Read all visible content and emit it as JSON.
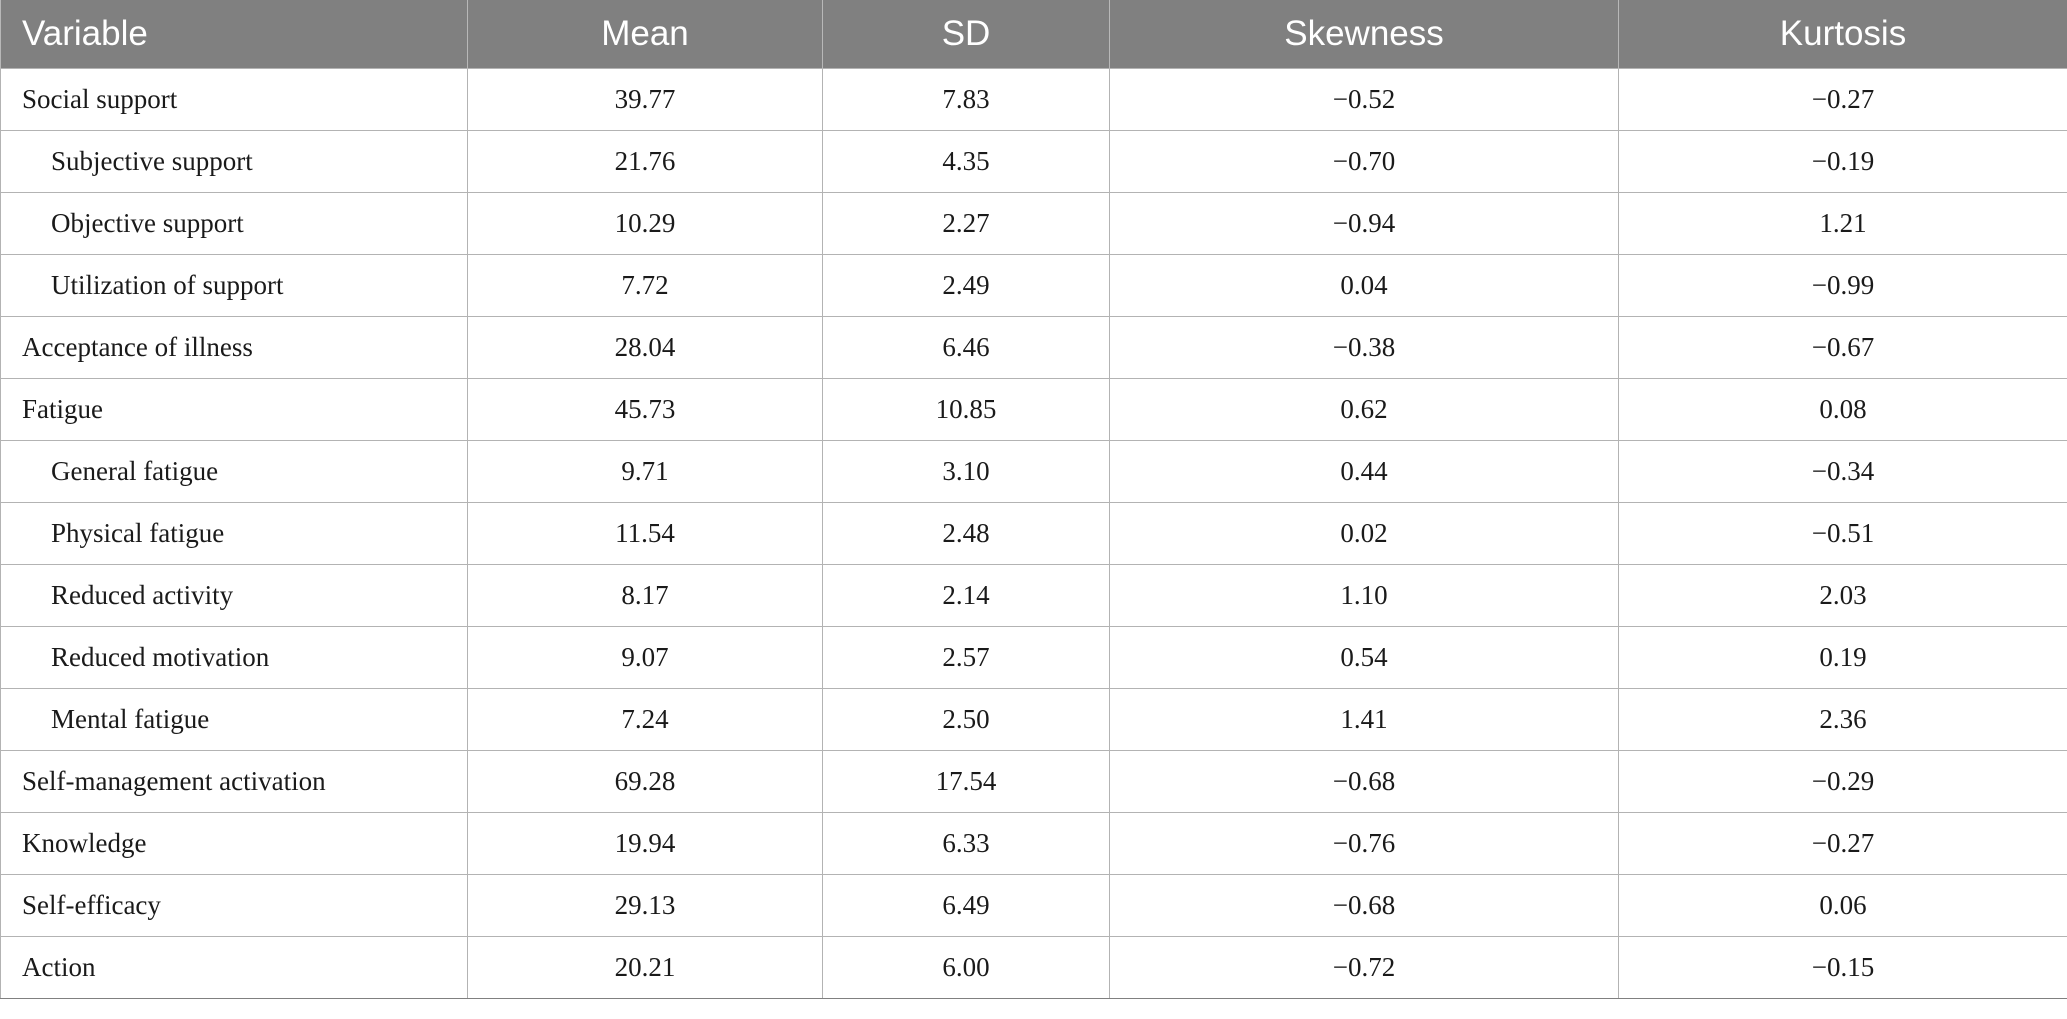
{
  "table": {
    "headers": [
      "Variable",
      "Mean",
      "SD",
      "Skewness",
      "Kurtosis"
    ],
    "rows": [
      {
        "variable": "Social support",
        "level": 0,
        "mean": "39.77",
        "sd": "7.83",
        "skewness": "−0.52",
        "kurtosis": "−0.27"
      },
      {
        "variable": "Subjective support",
        "level": 1,
        "mean": "21.76",
        "sd": "4.35",
        "skewness": "−0.70",
        "kurtosis": "−0.19"
      },
      {
        "variable": "Objective support",
        "level": 1,
        "mean": "10.29",
        "sd": "2.27",
        "skewness": "−0.94",
        "kurtosis": "1.21"
      },
      {
        "variable": "Utilization of support",
        "level": 1,
        "mean": "7.72",
        "sd": "2.49",
        "skewness": "0.04",
        "kurtosis": "−0.99"
      },
      {
        "variable": "Acceptance of illness",
        "level": 0,
        "mean": "28.04",
        "sd": "6.46",
        "skewness": "−0.38",
        "kurtosis": "−0.67"
      },
      {
        "variable": "Fatigue",
        "level": 0,
        "mean": "45.73",
        "sd": "10.85",
        "skewness": "0.62",
        "kurtosis": "0.08"
      },
      {
        "variable": "General fatigue",
        "level": 1,
        "mean": "9.71",
        "sd": "3.10",
        "skewness": "0.44",
        "kurtosis": "−0.34"
      },
      {
        "variable": "Physical fatigue",
        "level": 1,
        "mean": "11.54",
        "sd": "2.48",
        "skewness": "0.02",
        "kurtosis": "−0.51"
      },
      {
        "variable": "Reduced activity",
        "level": 1,
        "mean": "8.17",
        "sd": "2.14",
        "skewness": "1.10",
        "kurtosis": "2.03"
      },
      {
        "variable": "Reduced motivation",
        "level": 1,
        "mean": "9.07",
        "sd": "2.57",
        "skewness": "0.54",
        "kurtosis": "0.19"
      },
      {
        "variable": "Mental fatigue",
        "level": 1,
        "mean": "7.24",
        "sd": "2.50",
        "skewness": "1.41",
        "kurtosis": "2.36"
      },
      {
        "variable": "Self-management activation",
        "level": 0,
        "mean": "69.28",
        "sd": "17.54",
        "skewness": "−0.68",
        "kurtosis": "−0.29"
      },
      {
        "variable": "Knowledge",
        "level": 0,
        "mean": "19.94",
        "sd": "6.33",
        "skewness": "−0.76",
        "kurtosis": "−0.27"
      },
      {
        "variable": "Self-efficacy",
        "level": 0,
        "mean": "29.13",
        "sd": "6.49",
        "skewness": "−0.68",
        "kurtosis": "0.06"
      },
      {
        "variable": "Action",
        "level": 0,
        "mean": "20.21",
        "sd": "6.00",
        "skewness": "−0.72",
        "kurtosis": "−0.15"
      }
    ]
  },
  "colors": {
    "header_background": "#808080",
    "header_text": "#ffffff",
    "grid_lines": "#b3b3b3",
    "body_text": "#1a1a1a"
  }
}
